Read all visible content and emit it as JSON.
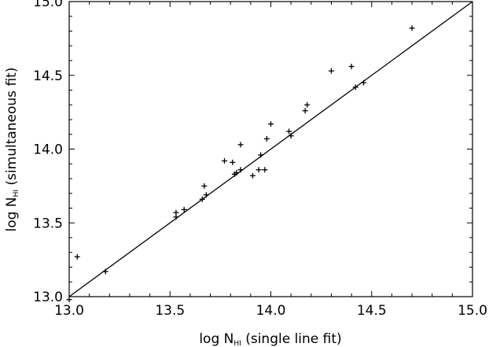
{
  "chart_data": {
    "type": "scatter",
    "xlabel": {
      "prefix": "log N",
      "sub": "HI",
      "suffix": " (single line fit)"
    },
    "ylabel": {
      "prefix": "log N",
      "sub": "HI",
      "suffix": " (simultaneous fit)"
    },
    "xlim": [
      13.0,
      15.0
    ],
    "ylim": [
      13.0,
      15.0
    ],
    "xticks": [
      "13.0",
      "13.5",
      "14.0",
      "14.5",
      "15.0"
    ],
    "yticks": [
      "13.0",
      "13.5",
      "14.0",
      "14.5",
      "15.0"
    ],
    "marker": "plus",
    "reference_line": [
      [
        13.0,
        13.0
      ],
      [
        15.0,
        15.0
      ]
    ],
    "grid": false,
    "points": [
      [
        13.0,
        12.98
      ],
      [
        13.04,
        13.27
      ],
      [
        13.18,
        13.17
      ],
      [
        13.53,
        13.54
      ],
      [
        13.53,
        13.57
      ],
      [
        13.57,
        13.59
      ],
      [
        13.66,
        13.66
      ],
      [
        13.67,
        13.75
      ],
      [
        13.68,
        13.69
      ],
      [
        13.77,
        13.92
      ],
      [
        13.81,
        13.91
      ],
      [
        13.82,
        13.83
      ],
      [
        13.83,
        13.84
      ],
      [
        13.85,
        13.86
      ],
      [
        13.85,
        14.03
      ],
      [
        13.91,
        13.82
      ],
      [
        13.94,
        13.86
      ],
      [
        13.95,
        13.96
      ],
      [
        13.97,
        13.86
      ],
      [
        13.98,
        14.07
      ],
      [
        14.0,
        14.17
      ],
      [
        14.09,
        14.12
      ],
      [
        14.1,
        14.09
      ],
      [
        14.17,
        14.26
      ],
      [
        14.18,
        14.3
      ],
      [
        14.3,
        14.53
      ],
      [
        14.4,
        14.56
      ],
      [
        14.42,
        14.42
      ],
      [
        14.46,
        14.45
      ],
      [
        14.7,
        14.82
      ]
    ]
  }
}
